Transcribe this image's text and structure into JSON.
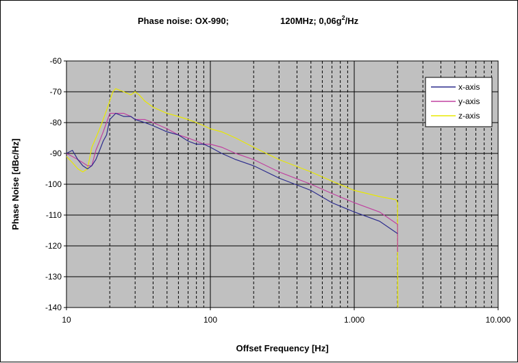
{
  "chart_data": {
    "type": "line",
    "title_parts": {
      "part1": "Phase noise: OX-990;",
      "part2": "120MHz;  0,06g",
      "sup": "2",
      "part3": "/Hz"
    },
    "xlabel": "Offset Frequency [Hz]",
    "ylabel": "Phase Noise [dBc/Hz]",
    "xscale": "log",
    "xlim": [
      10,
      10000
    ],
    "ylim": [
      -140,
      -60
    ],
    "grid": true,
    "legend_position": "top-right",
    "x_tick_labels": [
      "10",
      "100",
      "1.000",
      "10.000"
    ],
    "y_tick_labels": [
      "-60",
      "-70",
      "-80",
      "-90",
      "-100",
      "-110",
      "-120",
      "-130",
      "-140"
    ],
    "series": [
      {
        "name": "x-axis",
        "color": "#2a2a8c",
        "x": [
          10,
          11,
          12,
          13,
          14,
          15,
          16,
          17,
          18,
          19,
          20,
          22,
          25,
          28,
          30,
          35,
          40,
          50,
          60,
          70,
          80,
          90,
          100,
          120,
          150,
          200,
          300,
          500,
          700,
          1000,
          1500,
          2000
        ],
        "y": [
          -90,
          -89,
          -92,
          -94,
          -95,
          -94,
          -92,
          -89,
          -86,
          -84,
          -79,
          -77,
          -78,
          -78,
          -79,
          -80,
          -81,
          -83,
          -84,
          -86,
          -87,
          -87,
          -88,
          -90,
          -92,
          -94,
          -98,
          -102,
          -106,
          -109,
          -112,
          -116
        ]
      },
      {
        "name": "y-axis",
        "color": "#c040a0",
        "x": [
          10,
          11,
          12,
          13,
          14,
          15,
          16,
          17,
          18,
          19,
          20,
          22,
          25,
          28,
          30,
          35,
          40,
          50,
          60,
          70,
          80,
          90,
          100,
          120,
          150,
          200,
          300,
          500,
          700,
          1000,
          1500,
          2000,
          2001,
          2002
        ],
        "y": [
          -90,
          -91,
          -92,
          -93,
          -94,
          -94,
          -89,
          -86,
          -83,
          -80,
          -77,
          -77,
          -77,
          -78,
          -79,
          -79,
          -80,
          -82,
          -84,
          -85,
          -86,
          -87,
          -87,
          -88,
          -90,
          -92,
          -96,
          -100,
          -103,
          -106,
          -109,
          -113,
          -117,
          -122
        ]
      },
      {
        "name": "z-axis",
        "color": "#e8e800",
        "x": [
          10,
          11,
          12,
          13,
          14,
          15,
          16,
          17,
          18,
          19,
          20,
          21,
          22,
          25,
          28,
          30,
          32,
          35,
          40,
          50,
          60,
          70,
          80,
          90,
          100,
          120,
          150,
          200,
          300,
          500,
          700,
          1000,
          1500,
          1950,
          2000,
          2005,
          2010
        ],
        "y": [
          -91,
          -93,
          -95,
          -96,
          -95,
          -88,
          -85,
          -82,
          -79,
          -76,
          -73,
          -70,
          -69,
          -70,
          -71,
          -70,
          -71,
          -73,
          -75,
          -77,
          -78,
          -79,
          -80,
          -81,
          -82,
          -83,
          -85,
          -88,
          -92,
          -96,
          -99,
          -102,
          -104,
          -105,
          -106,
          -125,
          -140
        ]
      }
    ]
  }
}
